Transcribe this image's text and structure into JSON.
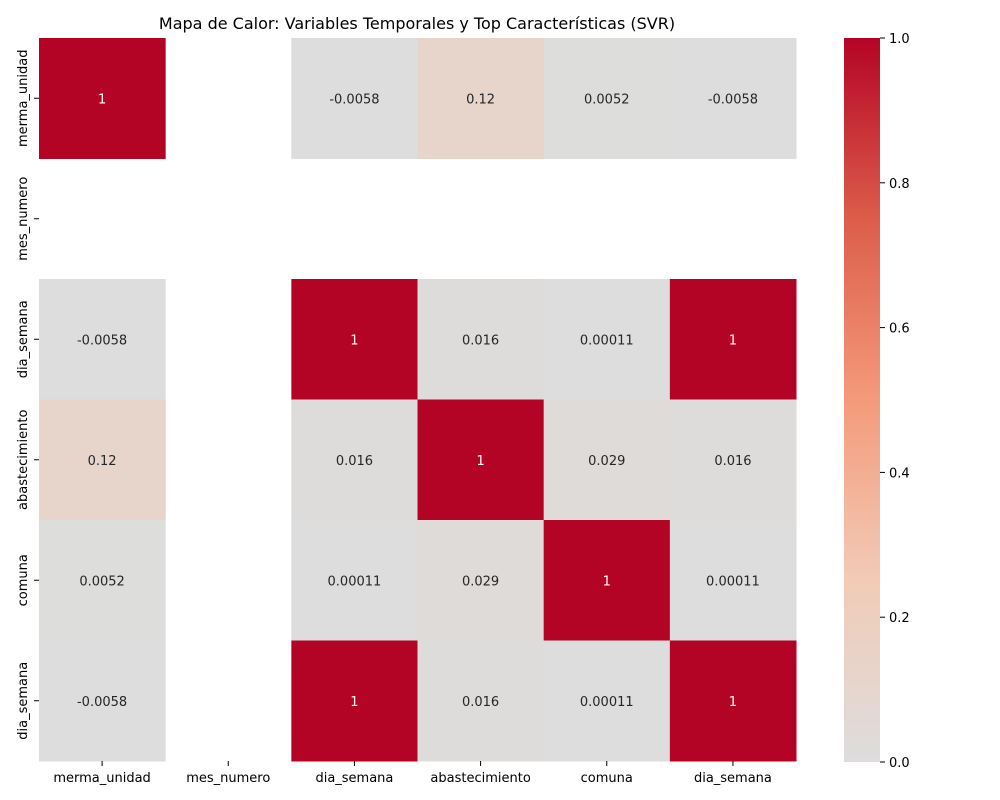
{
  "chart_data": {
    "type": "heatmap",
    "title": "Mapa de Calor: Variables Temporales y Top Características (SVR)",
    "x_labels": [
      "merma_unidad",
      "mes_numero",
      "dia_semana",
      "abastecimiento",
      "comuna",
      "dia_semana"
    ],
    "y_labels": [
      "merma_unidad",
      "mes_numero",
      "dia_semana",
      "abastecimiento",
      "comuna",
      "dia_semana"
    ],
    "values": [
      [
        1,
        null,
        -0.0058,
        0.12,
        0.0052,
        -0.0058
      ],
      [
        null,
        null,
        null,
        null,
        null,
        null
      ],
      [
        -0.0058,
        null,
        1,
        0.016,
        0.00011,
        1
      ],
      [
        0.12,
        null,
        0.016,
        1,
        0.029,
        0.016
      ],
      [
        0.0052,
        null,
        0.00011,
        0.029,
        1,
        0.00011
      ],
      [
        -0.0058,
        null,
        1,
        0.016,
        0.00011,
        1
      ]
    ],
    "annotations": [
      [
        "1",
        "",
        "-0.0058",
        "0.12",
        "0.0052",
        "-0.0058"
      ],
      [
        "",
        "",
        "",
        "",
        "",
        ""
      ],
      [
        "-0.0058",
        "",
        "1",
        "0.016",
        "0.00011",
        "1"
      ],
      [
        "0.12",
        "",
        "0.016",
        "1",
        "0.029",
        "0.016"
      ],
      [
        "0.0052",
        "",
        "0.00011",
        "0.029",
        "1",
        "0.00011"
      ],
      [
        "-0.0058",
        "",
        "1",
        "0.016",
        "0.00011",
        "1"
      ]
    ],
    "colormap": "coolwarm",
    "vmin": 0,
    "vmax": 1,
    "colorbar_ticks": [
      "0.0",
      "0.2",
      "0.4",
      "0.6",
      "0.8",
      "1.0"
    ],
    "colors": {
      "low": "#dddddd",
      "high": "#b40426"
    }
  }
}
